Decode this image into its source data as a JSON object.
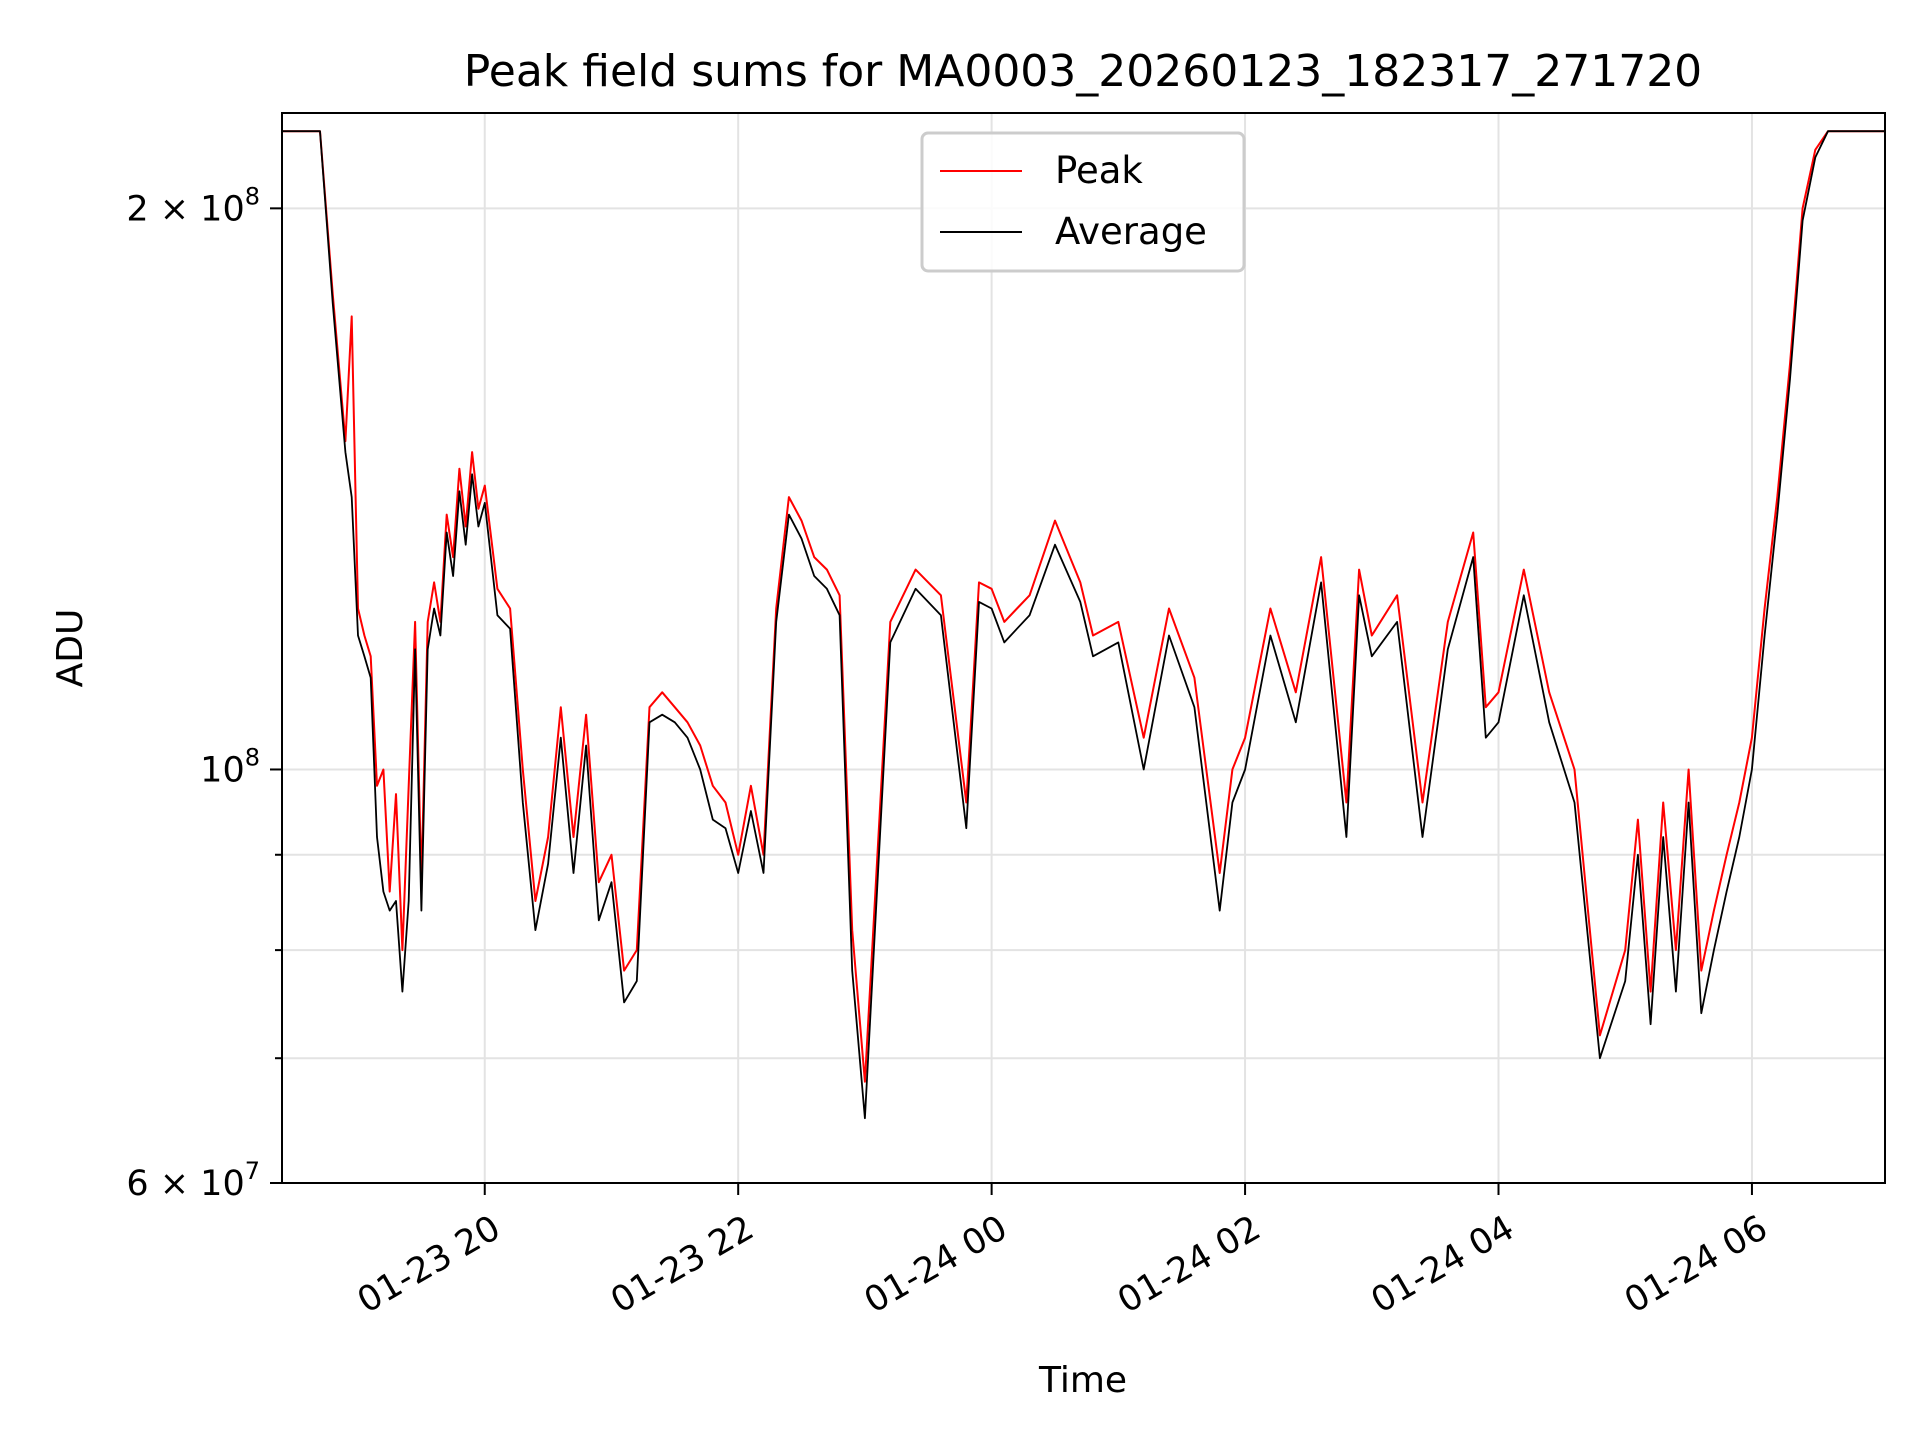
{
  "chart_data": {
    "type": "line",
    "title": "Peak field sums for MA0003_20260123_182317_271720",
    "xlabel": "Time",
    "ylabel": "ADU",
    "yscale": "log",
    "ylim": [
      60000000,
      225000000
    ],
    "xlim_hours": [
      18.4,
      31.05
    ],
    "grid": true,
    "legend_position": "upper center",
    "x_ticks": [
      {
        "hour": 20,
        "label": "01-23 20"
      },
      {
        "hour": 22,
        "label": "01-23 22"
      },
      {
        "hour": 24,
        "label": "01-24 00"
      },
      {
        "hour": 26,
        "label": "01-24 02"
      },
      {
        "hour": 28,
        "label": "01-24 04"
      },
      {
        "hour": 30,
        "label": "01-24 06"
      }
    ],
    "y_ticks_major": [
      {
        "value": 200000000,
        "label": "2 × 10⁸",
        "base": "2 × 10",
        "exp": "8"
      },
      {
        "value": 100000000,
        "label": "10⁸",
        "base": "10",
        "exp": "8"
      },
      {
        "value": 60000000,
        "label": "6 × 10⁷",
        "base": "6 × 10",
        "exp": "7"
      }
    ],
    "y_minor_gridlines": [
      70000000,
      80000000,
      90000000
    ],
    "series": [
      {
        "name": "Peak",
        "color": "#ff0000",
        "x_hours": [
          18.4,
          18.7,
          18.8,
          18.9,
          18.95,
          19.0,
          19.05,
          19.1,
          19.15,
          19.2,
          19.25,
          19.3,
          19.35,
          19.4,
          19.45,
          19.5,
          19.55,
          19.6,
          19.65,
          19.7,
          19.75,
          19.8,
          19.85,
          19.9,
          19.95,
          20.0,
          20.1,
          20.2,
          20.3,
          20.4,
          20.5,
          20.6,
          20.7,
          20.8,
          20.9,
          21.0,
          21.1,
          21.2,
          21.3,
          21.4,
          21.5,
          21.6,
          21.7,
          21.8,
          21.9,
          22.0,
          22.1,
          22.2,
          22.3,
          22.4,
          22.5,
          22.6,
          22.7,
          22.8,
          22.9,
          23.0,
          23.2,
          23.4,
          23.6,
          23.8,
          23.9,
          24.0,
          24.1,
          24.2,
          24.3,
          24.5,
          24.7,
          24.8,
          25.0,
          25.2,
          25.4,
          25.6,
          25.8,
          25.9,
          26.0,
          26.2,
          26.4,
          26.6,
          26.8,
          26.9,
          27.0,
          27.2,
          27.4,
          27.6,
          27.8,
          27.9,
          28.0,
          28.2,
          28.4,
          28.6,
          28.8,
          29.0,
          29.1,
          29.2,
          29.3,
          29.4,
          29.5,
          29.6,
          29.7,
          29.8,
          29.9,
          30.0,
          30.1,
          30.2,
          30.3,
          30.4,
          30.5,
          30.6,
          30.8,
          31.05
        ],
        "values": [
          220000000,
          220000000,
          180000000,
          150000000,
          175000000,
          122000000,
          118000000,
          115000000,
          98000000,
          100000000,
          86000000,
          97000000,
          80000000,
          98000000,
          120000000,
          87000000,
          120000000,
          126000000,
          120000000,
          137000000,
          130000000,
          145000000,
          135000000,
          148000000,
          138000000,
          142000000,
          125000000,
          122000000,
          100000000,
          85000000,
          92000000,
          108000000,
          92000000,
          107000000,
          87000000,
          90000000,
          78000000,
          80000000,
          108000000,
          110000000,
          108000000,
          106000000,
          103000000,
          98000000,
          96000000,
          90000000,
          98000000,
          90000000,
          122000000,
          140000000,
          136000000,
          130000000,
          128000000,
          124000000,
          82000000,
          68000000,
          120000000,
          128000000,
          124000000,
          96000000,
          126000000,
          125000000,
          120000000,
          122000000,
          124000000,
          136000000,
          126000000,
          118000000,
          120000000,
          104000000,
          122000000,
          112000000,
          88000000,
          100000000,
          104000000,
          122000000,
          110000000,
          130000000,
          96000000,
          128000000,
          118000000,
          124000000,
          96000000,
          120000000,
          134000000,
          108000000,
          110000000,
          128000000,
          110000000,
          100000000,
          72000000,
          80000000,
          94000000,
          76000000,
          96000000,
          80000000,
          100000000,
          78000000,
          84000000,
          90000000,
          96000000,
          104000000,
          122000000,
          140000000,
          165000000,
          200000000,
          215000000,
          220000000,
          220000000,
          220000000
        ]
      },
      {
        "name": "Average",
        "color": "#000000",
        "x_hours": [
          18.4,
          18.7,
          18.8,
          18.9,
          18.95,
          19.0,
          19.05,
          19.1,
          19.15,
          19.2,
          19.25,
          19.3,
          19.35,
          19.4,
          19.45,
          19.5,
          19.55,
          19.6,
          19.65,
          19.7,
          19.75,
          19.8,
          19.85,
          19.9,
          19.95,
          20.0,
          20.1,
          20.2,
          20.3,
          20.4,
          20.5,
          20.6,
          20.7,
          20.8,
          20.9,
          21.0,
          21.1,
          21.2,
          21.3,
          21.4,
          21.5,
          21.6,
          21.7,
          21.8,
          21.9,
          22.0,
          22.1,
          22.2,
          22.3,
          22.4,
          22.5,
          22.6,
          22.7,
          22.8,
          22.9,
          23.0,
          23.2,
          23.4,
          23.6,
          23.8,
          23.9,
          24.0,
          24.1,
          24.2,
          24.3,
          24.5,
          24.7,
          24.8,
          25.0,
          25.2,
          25.4,
          25.6,
          25.8,
          25.9,
          26.0,
          26.2,
          26.4,
          26.6,
          26.8,
          26.9,
          27.0,
          27.2,
          27.4,
          27.6,
          27.8,
          27.9,
          28.0,
          28.2,
          28.4,
          28.6,
          28.8,
          29.0,
          29.1,
          29.2,
          29.3,
          29.4,
          29.5,
          29.6,
          29.7,
          29.8,
          29.9,
          30.0,
          30.1,
          30.2,
          30.3,
          30.4,
          30.5,
          30.6,
          30.8,
          31.05
        ],
        "values": [
          220000000,
          220000000,
          178000000,
          148000000,
          140000000,
          118000000,
          115000000,
          112000000,
          92000000,
          86000000,
          84000000,
          85000000,
          76000000,
          85000000,
          116000000,
          84000000,
          116000000,
          122000000,
          118000000,
          134000000,
          127000000,
          141000000,
          132000000,
          144000000,
          135000000,
          139000000,
          121000000,
          119000000,
          96000000,
          82000000,
          89000000,
          104000000,
          88000000,
          103000000,
          83000000,
          87000000,
          75000000,
          77000000,
          106000000,
          107000000,
          106000000,
          104000000,
          100000000,
          94000000,
          93000000,
          88000000,
          95000000,
          88000000,
          120000000,
          137000000,
          133000000,
          127000000,
          125000000,
          121000000,
          78000000,
          65000000,
          117000000,
          125000000,
          121000000,
          93000000,
          123000000,
          122000000,
          117000000,
          119000000,
          121000000,
          132000000,
          123000000,
          115000000,
          117000000,
          100000000,
          118000000,
          108000000,
          84000000,
          96000000,
          100000000,
          118000000,
          106000000,
          126000000,
          92000000,
          124000000,
          115000000,
          120000000,
          92000000,
          116000000,
          130000000,
          104000000,
          106000000,
          124000000,
          106000000,
          96000000,
          70000000,
          77000000,
          90000000,
          73000000,
          92000000,
          76000000,
          96000000,
          74000000,
          80000000,
          86000000,
          92000000,
          100000000,
          118000000,
          137000000,
          162000000,
          197000000,
          213000000,
          220000000,
          220000000,
          220000000
        ]
      }
    ]
  }
}
